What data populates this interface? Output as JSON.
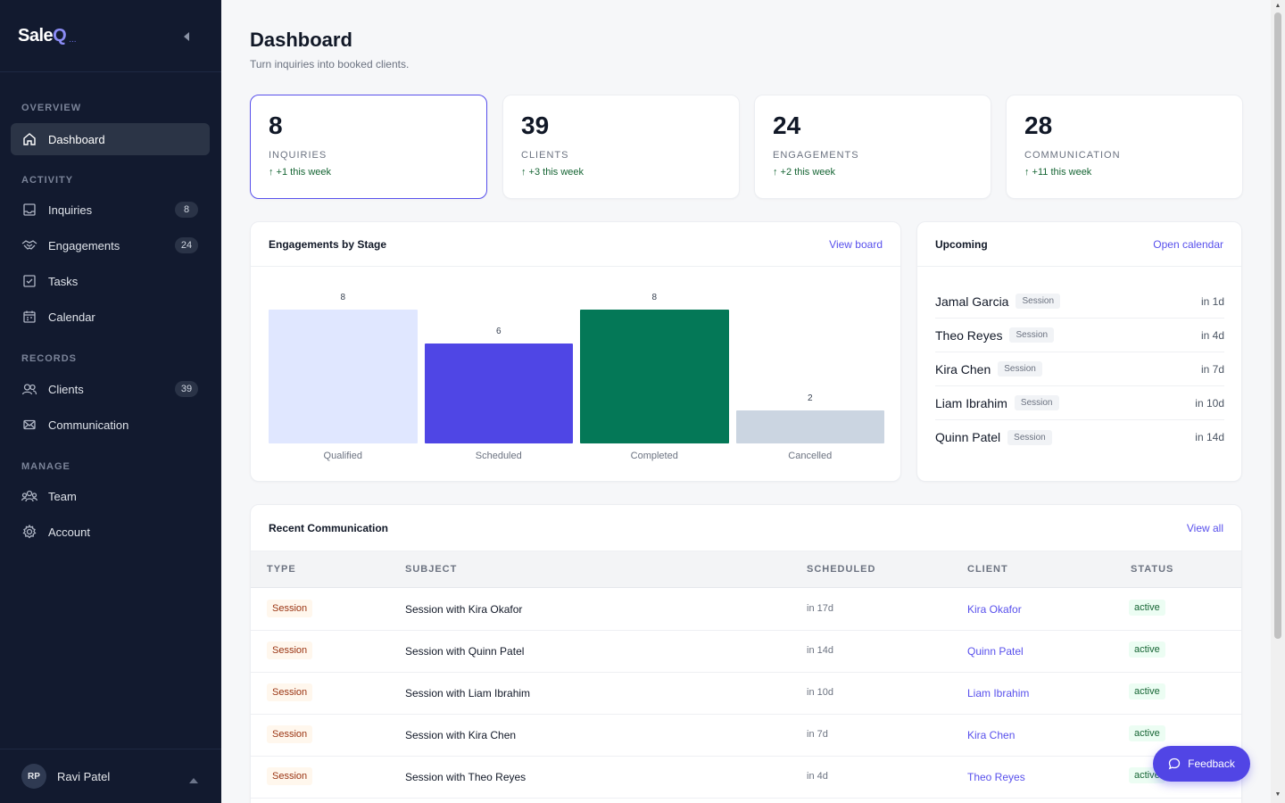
{
  "app": {
    "brand_main": "Sale",
    "brand_accent": "Q",
    "brand_suffix": "..."
  },
  "sidebar": {
    "sections": {
      "overview": "OVERVIEW",
      "activity": "ACTIVITY",
      "records": "RECORDS",
      "manage": "MANAGE"
    },
    "items": [
      {
        "label": "Dashboard",
        "icon": "home-icon"
      },
      {
        "label": "Inquiries",
        "icon": "inbox-icon",
        "badge": "8"
      },
      {
        "label": "Engagements",
        "icon": "handshake-icon",
        "badge": "24"
      },
      {
        "label": "Tasks",
        "icon": "checkbox-icon"
      },
      {
        "label": "Calendar",
        "icon": "calendar-icon"
      },
      {
        "label": "Clients",
        "icon": "users-icon",
        "badge": "39"
      },
      {
        "label": "Communication",
        "icon": "mail-icon"
      },
      {
        "label": "Team",
        "icon": "team-icon"
      },
      {
        "label": "Account",
        "icon": "gear-icon"
      }
    ],
    "user": {
      "initials": "RP",
      "name": "Ravi Patel"
    }
  },
  "header": {
    "title": "Dashboard",
    "subtitle": "Turn inquiries into booked clients."
  },
  "stats": [
    {
      "value": "8",
      "label": "INQUIRIES",
      "delta": "↑ +1 this week"
    },
    {
      "value": "39",
      "label": "CLIENTS",
      "delta": "↑ +3 this week"
    },
    {
      "value": "24",
      "label": "ENGAGEMENTS",
      "delta": "↑ +2 this week"
    },
    {
      "value": "28",
      "label": "COMMUNICATION",
      "delta": "↑ +11 this week"
    }
  ],
  "engagements_panel": {
    "title": "Engagements by Stage",
    "link": "View board"
  },
  "chart_data": {
    "type": "bar",
    "categories": [
      "Qualified",
      "Scheduled",
      "Completed",
      "Cancelled"
    ],
    "values": [
      8,
      6,
      8,
      2
    ],
    "value_labels": [
      "8",
      "6",
      "8",
      "2"
    ],
    "colors": [
      "#e0e7ff",
      "#4f46e5",
      "#047857",
      "#cbd5e1"
    ],
    "ylim": [
      0,
      8
    ]
  },
  "upcoming": {
    "title": "Upcoming",
    "link": "Open calendar",
    "items": [
      {
        "name": "Jamal Garcia",
        "tag": "Session",
        "when": "in 1d"
      },
      {
        "name": "Theo Reyes",
        "tag": "Session",
        "when": "in 4d"
      },
      {
        "name": "Kira Chen",
        "tag": "Session",
        "when": "in 7d"
      },
      {
        "name": "Liam Ibrahim",
        "tag": "Session",
        "when": "in 10d"
      },
      {
        "name": "Quinn Patel",
        "tag": "Session",
        "when": "in 14d"
      }
    ]
  },
  "communication": {
    "title": "Recent Communication",
    "link": "View all",
    "columns": [
      "TYPE",
      "SUBJECT",
      "SCHEDULED",
      "CLIENT",
      "STATUS"
    ],
    "rows": [
      {
        "type": "Session",
        "subject": "Session with Kira Okafor",
        "scheduled": "in 17d",
        "client": "Kira Okafor",
        "status": "active"
      },
      {
        "type": "Session",
        "subject": "Session with Quinn Patel",
        "scheduled": "in 14d",
        "client": "Quinn Patel",
        "status": "active"
      },
      {
        "type": "Session",
        "subject": "Session with Liam Ibrahim",
        "scheduled": "in 10d",
        "client": "Liam Ibrahim",
        "status": "active"
      },
      {
        "type": "Session",
        "subject": "Session with Kira Chen",
        "scheduled": "in 7d",
        "client": "Kira Chen",
        "status": "active"
      },
      {
        "type": "Session",
        "subject": "Session with Theo Reyes",
        "scheduled": "in 4d",
        "client": "Theo Reyes",
        "status": "active"
      }
    ]
  },
  "feedback": {
    "label": "Feedback",
    "icon": "chat-bubble-icon"
  }
}
